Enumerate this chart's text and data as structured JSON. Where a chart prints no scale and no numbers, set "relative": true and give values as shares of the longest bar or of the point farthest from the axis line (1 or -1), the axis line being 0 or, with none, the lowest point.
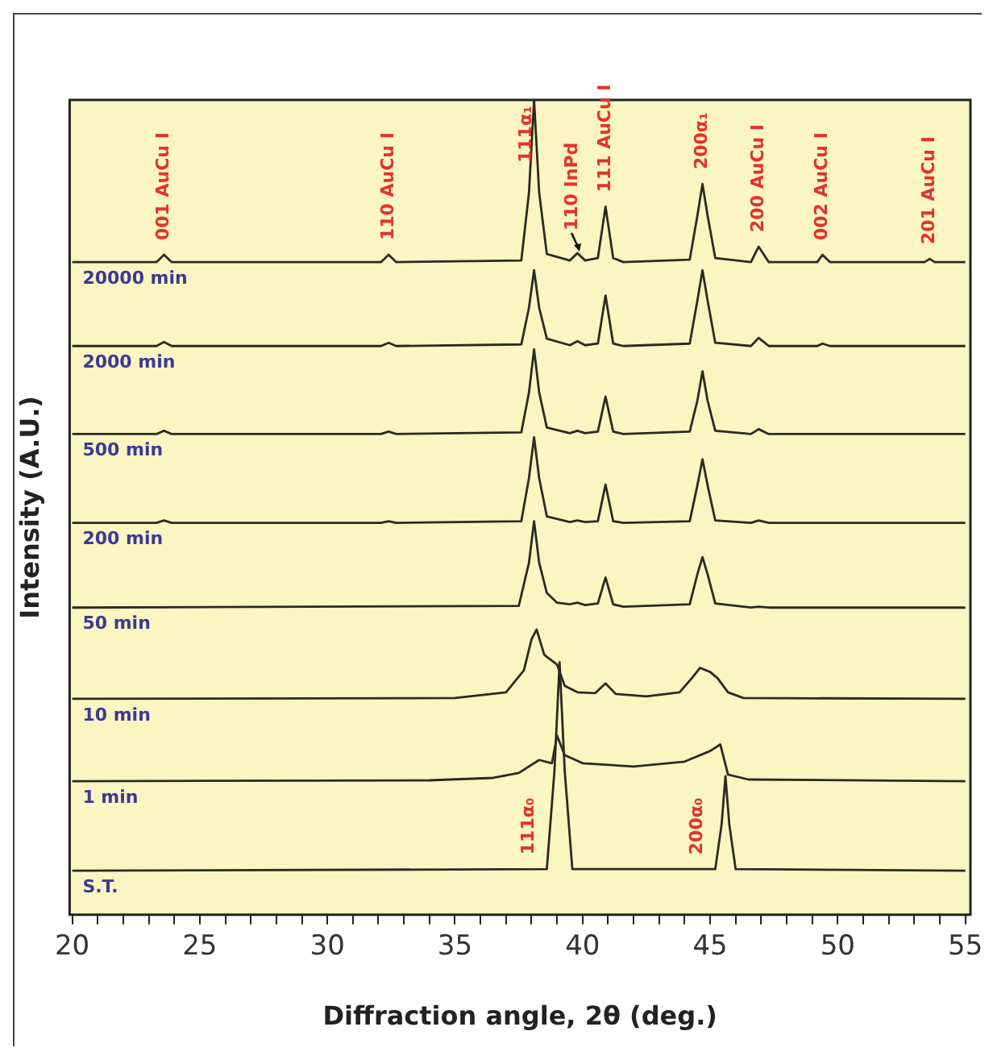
{
  "chart_data": {
    "type": "line",
    "relative": true,
    "xlabel": "Diffraction angle, 2θ (deg.)",
    "ylabel": "Intensity (A.U.)",
    "xlim": [
      19.9,
      55.2
    ],
    "xticks": [
      20,
      {
        "value": 21,
        "label": null
      },
      {
        "value": 22,
        "label": null
      },
      {
        "value": 23,
        "label": null
      },
      {
        "value": 24,
        "label": null
      },
      25,
      {
        "value": 26,
        "label": null
      },
      {
        "value": 27,
        "label": null
      },
      {
        "value": 28,
        "label": null
      },
      {
        "value": 29,
        "label": null
      },
      30,
      {
        "value": 31,
        "label": null
      },
      {
        "value": 32,
        "label": null
      },
      {
        "value": 33,
        "label": null
      },
      {
        "value": 34,
        "label": null
      },
      35,
      {
        "value": 36,
        "label": null
      },
      {
        "value": 37,
        "label": null
      },
      {
        "value": 38,
        "label": null
      },
      {
        "value": 39,
        "label": null
      },
      40,
      {
        "value": 41,
        "label": null
      },
      {
        "value": 42,
        "label": null
      },
      {
        "value": 43,
        "label": null
      },
      {
        "value": 44,
        "label": null
      },
      45,
      {
        "value": 46,
        "label": null
      },
      {
        "value": 47,
        "label": null
      },
      {
        "value": 48,
        "label": null
      },
      {
        "value": 49,
        "label": null
      },
      50,
      {
        "value": 51,
        "label": null
      },
      {
        "value": 52,
        "label": null
      },
      {
        "value": 53,
        "label": null
      },
      {
        "value": 54,
        "label": null
      },
      55
    ],
    "series": [
      {
        "name": "20000 min",
        "color": "#2b2a22",
        "x": [
          20,
          23.3,
          23.6,
          23.9,
          32.1,
          32.4,
          32.7,
          37.6,
          37.9,
          38.1,
          38.3,
          38.6,
          39.5,
          39.8,
          40.1,
          40.6,
          40.9,
          41.2,
          41.6,
          44.2,
          44.5,
          44.7,
          44.9,
          45.2,
          46.6,
          46.9,
          47.3,
          49.2,
          49.4,
          49.7,
          53.4,
          53.6,
          53.8,
          55
        ],
        "values": [
          0.801,
          0.801,
          0.81,
          0.801,
          0.801,
          0.81,
          0.801,
          0.803,
          0.886,
          1,
          0.886,
          0.811,
          0.803,
          0.812,
          0.803,
          0.806,
          0.869,
          0.806,
          0.801,
          0.804,
          0.858,
          0.897,
          0.858,
          0.806,
          0.801,
          0.82,
          0.801,
          0.801,
          0.81,
          0.801,
          0.801,
          0.805,
          0.801,
          0.801
        ]
      },
      {
        "name": "2000 min",
        "color": "#2b2a22",
        "x": [
          20,
          23.3,
          23.6,
          23.9,
          32.1,
          32.4,
          32.7,
          37.6,
          37.9,
          38.1,
          38.3,
          38.6,
          39.5,
          39.8,
          40.1,
          40.6,
          40.9,
          41.2,
          41.6,
          44.2,
          44.5,
          44.7,
          44.9,
          45.2,
          46.6,
          46.9,
          47.3,
          49.2,
          49.4,
          49.7,
          55
        ],
        "values": [
          0.698,
          0.698,
          0.703,
          0.698,
          0.698,
          0.702,
          0.698,
          0.7,
          0.745,
          0.791,
          0.745,
          0.707,
          0.699,
          0.704,
          0.699,
          0.701,
          0.76,
          0.701,
          0.698,
          0.701,
          0.754,
          0.791,
          0.754,
          0.702,
          0.698,
          0.708,
          0.698,
          0.698,
          0.701,
          0.698,
          0.698
        ]
      },
      {
        "name": "500 min",
        "color": "#2b2a22",
        "x": [
          20,
          23.3,
          23.6,
          23.9,
          32.1,
          32.4,
          32.7,
          37.6,
          37.9,
          38.1,
          38.3,
          38.6,
          39.5,
          39.8,
          40.1,
          40.6,
          40.9,
          41.2,
          41.6,
          44.2,
          44.5,
          44.7,
          44.9,
          45.2,
          46.6,
          46.9,
          47.3,
          55
        ],
        "values": [
          0.59,
          0.59,
          0.594,
          0.59,
          0.59,
          0.593,
          0.59,
          0.592,
          0.641,
          0.694,
          0.641,
          0.598,
          0.591,
          0.594,
          0.591,
          0.593,
          0.636,
          0.593,
          0.59,
          0.593,
          0.631,
          0.667,
          0.631,
          0.594,
          0.59,
          0.596,
          0.59,
          0.59
        ]
      },
      {
        "name": "200 min",
        "color": "#2b2a22",
        "x": [
          20,
          23.3,
          23.6,
          23.9,
          32.1,
          32.4,
          32.7,
          37.6,
          37.9,
          38.1,
          38.3,
          38.6,
          39.5,
          39.8,
          40.1,
          40.6,
          40.9,
          41.2,
          41.6,
          44.2,
          44.5,
          44.7,
          44.9,
          45.2,
          46.6,
          46.9,
          47.3,
          55
        ],
        "values": [
          0.481,
          0.481,
          0.484,
          0.481,
          0.481,
          0.483,
          0.481,
          0.483,
          0.536,
          0.586,
          0.536,
          0.489,
          0.482,
          0.484,
          0.482,
          0.483,
          0.528,
          0.483,
          0.481,
          0.483,
          0.527,
          0.559,
          0.527,
          0.484,
          0.481,
          0.484,
          0.481,
          0.481
        ]
      },
      {
        "name": "50 min",
        "color": "#2b2a22",
        "x": [
          20,
          37.5,
          37.9,
          38.1,
          38.3,
          38.6,
          39.0,
          39.5,
          39.8,
          40.1,
          40.6,
          40.9,
          41.2,
          41.6,
          44.2,
          44.5,
          44.7,
          44.9,
          45.2,
          46.6,
          46.9,
          47.3,
          55
        ],
        "values": [
          0.377,
          0.379,
          0.432,
          0.483,
          0.432,
          0.395,
          0.383,
          0.381,
          0.383,
          0.38,
          0.382,
          0.414,
          0.381,
          0.378,
          0.381,
          0.418,
          0.439,
          0.418,
          0.382,
          0.377,
          0.378,
          0.377,
          0.377
        ]
      },
      {
        "name": "10 min",
        "color": "#2b2a22",
        "x": [
          20,
          35,
          37.0,
          37.7,
          38.0,
          38.2,
          38.5,
          39.0,
          39.3,
          39.8,
          40.5,
          40.9,
          41.3,
          42.5,
          43.8,
          44.3,
          44.6,
          45.0,
          45.3,
          45.7,
          46.3,
          55
        ],
        "values": [
          0.265,
          0.266,
          0.273,
          0.3,
          0.338,
          0.35,
          0.319,
          0.307,
          0.281,
          0.273,
          0.272,
          0.284,
          0.271,
          0.268,
          0.273,
          0.291,
          0.303,
          0.298,
          0.29,
          0.273,
          0.266,
          0.265
        ]
      },
      {
        "name": "1 min",
        "color": "#2b2a22",
        "x": [
          20,
          34,
          36.5,
          37.5,
          38.3,
          38.8,
          39.0,
          39.3,
          40,
          42,
          44,
          45,
          45.4,
          45.7,
          46.5,
          55
        ],
        "values": [
          0.164,
          0.165,
          0.168,
          0.174,
          0.19,
          0.186,
          0.22,
          0.196,
          0.186,
          0.182,
          0.188,
          0.201,
          0.209,
          0.172,
          0.166,
          0.164
        ]
      },
      {
        "name": "S.T.",
        "color": "#2b2a22",
        "x": [
          20,
          38.6,
          38.9,
          39.1,
          39.3,
          39.6,
          45.2,
          45.45,
          45.6,
          45.75,
          46.0,
          55
        ],
        "values": [
          0.054,
          0.056,
          0.177,
          0.31,
          0.177,
          0.056,
          0.056,
          0.111,
          0.17,
          0.111,
          0.056,
          0.054
        ]
      }
    ],
    "annotations": [
      {
        "text": "001 AuCu I",
        "x": 23.6,
        "y": 0.81
      },
      {
        "text": "110 AuCu I",
        "x": 32.4,
        "y": 0.81
      },
      {
        "text": "111α₁",
        "x": 37.8,
        "y": 0.905
      },
      {
        "text": "110 InPd",
        "x": 39.8,
        "y": 0.812
      },
      {
        "text": "111 AuCu I",
        "x": 40.9,
        "y": 0.869
      },
      {
        "text": "200α₁",
        "x": 44.7,
        "y": 0.897
      },
      {
        "text": "200 AuCu I",
        "x": 46.9,
        "y": 0.82
      },
      {
        "text": "002 AuCu I",
        "x": 49.4,
        "y": 0.81
      },
      {
        "text": "201 AuCu I",
        "x": 53.6,
        "y": 0.805
      },
      {
        "text": "111α₀",
        "x": 37.9,
        "y": 0.056
      },
      {
        "text": "200α₀",
        "x": 44.5,
        "y": 0.056
      }
    ]
  }
}
